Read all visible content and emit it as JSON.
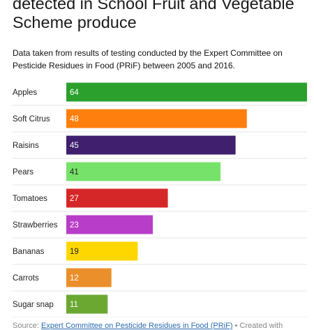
{
  "title": "detected in School Fruit and Vegetable Scheme produce",
  "subtitle": "Data taken from results of testing conducted by the Expert Committee on Pesticide Residues in Food (PRiF) between 2005 and 2016.",
  "source": {
    "prefix": "Source:",
    "link_text": "Expert Committee on Pesticide Residues in Food (PRiF)",
    "suffix": "• Created with"
  },
  "chart_data": {
    "type": "bar",
    "orientation": "horizontal",
    "categories": [
      "Apples",
      "Soft Citrus",
      "Raisins",
      "Pears",
      "Tomatoes",
      "Strawberries",
      "Bananas",
      "Carrots",
      "Sugar snap"
    ],
    "values": [
      64,
      48,
      45,
      41,
      27,
      23,
      19,
      12,
      11
    ],
    "colors": [
      "#2ca02c",
      "#ff7f0e",
      "#3f1f6e",
      "#77e26a",
      "#d62728",
      "#b83dc8",
      "#ffd700",
      "#ea8f2a",
      "#6aa832"
    ],
    "label_colors": [
      "#ffffff",
      "#ffffff",
      "#ffffff",
      "#222222",
      "#ffffff",
      "#ffffff",
      "#222222",
      "#ffffff",
      "#ffffff"
    ],
    "xlim": [
      0,
      64
    ],
    "xlabel": "",
    "ylabel": "",
    "grid": true,
    "legend": "none"
  }
}
